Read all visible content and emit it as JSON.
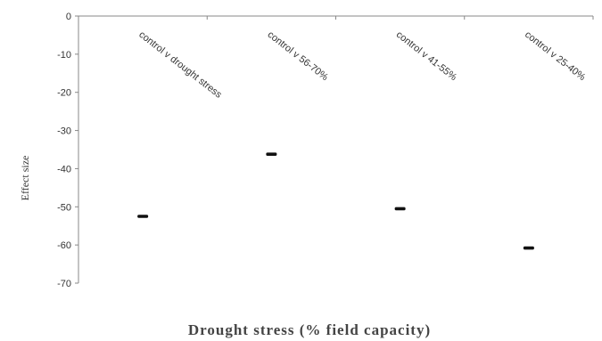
{
  "chart_data": {
    "type": "scatter",
    "title": "",
    "xlabel": "Drought stress (% field capacity)",
    "ylabel": "Effect size",
    "ylim": [
      -70,
      0
    ],
    "yticks": [
      0,
      -10,
      -20,
      -30,
      -40,
      -50,
      -60,
      -70
    ],
    "grid": false,
    "categories": [
      "control v drought stress",
      "control v 56-70%",
      "control v 41-55%",
      "control v 25-40%"
    ],
    "values": [
      -52.5,
      -36.2,
      -50.5,
      -60.8
    ],
    "marker_color": "#111111",
    "axis_color": "#888888"
  }
}
